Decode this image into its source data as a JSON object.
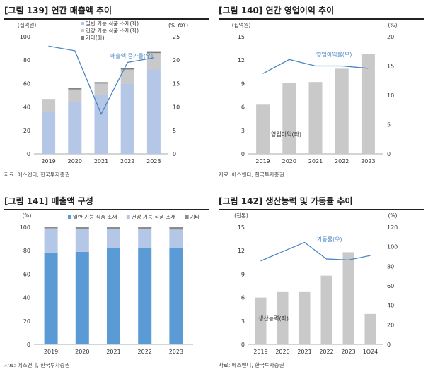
{
  "chart_data": [
    {
      "type": "bar",
      "stacked": true,
      "title": "[그림 139] 연간 매출액 추이",
      "source": "자료: 에스앤디, 한국투자증권",
      "left_unit": "(십억원)",
      "right_unit": "(% YoY)",
      "categories": [
        "2019",
        "2020",
        "2021",
        "2022",
        "2023"
      ],
      "ylim": [
        0,
        100
      ],
      "yticks": [
        "0",
        "20",
        "40",
        "60",
        "80",
        "100"
      ],
      "y2lim": [
        0,
        25
      ],
      "y2ticks": [
        "0",
        "5",
        "10",
        "15",
        "20",
        "25"
      ],
      "series": [
        {
          "name": "일반 기능 식품 소재(좌)",
          "color": "#b4c7e7",
          "values": [
            36,
            44,
            50,
            60,
            72
          ]
        },
        {
          "name": "건강 기능 식품 소재(좌)",
          "color": "#c9c9c9",
          "values": [
            10,
            11,
            10,
            12,
            14
          ]
        },
        {
          "name": "기타(좌)",
          "color": "#7f7f7f",
          "values": [
            0.6,
            1,
            1.2,
            1.4,
            1.6
          ]
        }
      ],
      "line": {
        "name": "매출액 증가률(우)",
        "color": "#4a86c5",
        "values": [
          23,
          22,
          8.5,
          19.5,
          20.5
        ]
      }
    },
    {
      "type": "bar",
      "title": "[그림 140] 연간 영업이익 추이",
      "source": "자료: 에스앤디, 한국투자증권",
      "left_unit": "(십억원)",
      "right_unit": "(%)",
      "categories": [
        "2019",
        "2020",
        "2021",
        "2022",
        "2023"
      ],
      "ylim": [
        0,
        15
      ],
      "yticks": [
        "0",
        "3",
        "6",
        "9",
        "12",
        "15"
      ],
      "y2lim": [
        0,
        20
      ],
      "y2ticks": [
        "0",
        "5",
        "10",
        "15",
        "20"
      ],
      "bar": {
        "name": "영업이익(좌)",
        "color": "#c9c9c9",
        "values": [
          6.3,
          9.1,
          9.2,
          10.9,
          12.8
        ]
      },
      "line": {
        "name": "영업이익률(우)",
        "color": "#4a86c5",
        "values": [
          13.7,
          16.1,
          15,
          15,
          14.6
        ]
      }
    },
    {
      "type": "bar",
      "stacked": true,
      "title": "[그림 141] 매출액 구성",
      "source": "자료: 에스앤디, 한국투자증권",
      "left_unit": "(%)",
      "categories": [
        "2019",
        "2020",
        "2021",
        "2022",
        "2023"
      ],
      "ylim": [
        0,
        100
      ],
      "yticks": [
        "0",
        "20",
        "40",
        "60",
        "80",
        "100"
      ],
      "series": [
        {
          "name": "일반 기능 식품 소재",
          "color": "#5b9bd5",
          "values": [
            78,
            79,
            82,
            82,
            82.5
          ]
        },
        {
          "name": "건강 기능 식품 소재",
          "color": "#b4c7e7",
          "values": [
            21,
            19.5,
            16.5,
            16.5,
            15.5
          ]
        },
        {
          "name": "기타",
          "color": "#8c8c8c",
          "values": [
            1,
            1.5,
            1.5,
            1.5,
            2
          ]
        }
      ]
    },
    {
      "type": "bar",
      "title": "[그림 142] 생산능력 및 가동률 추이",
      "source": "자료: 에스앤디, 한국투자증권",
      "left_unit": "(천톤)",
      "right_unit": "(%)",
      "categories": [
        "2019",
        "2020",
        "2021",
        "2022",
        "2023",
        "1Q24"
      ],
      "ylim": [
        0,
        15
      ],
      "yticks": [
        "0",
        "3",
        "6",
        "9",
        "12",
        "15"
      ],
      "y2lim": [
        0,
        120
      ],
      "y2ticks": [
        "0",
        "20",
        "40",
        "60",
        "80",
        "100",
        "120"
      ],
      "bar": {
        "name": "생산능력(좌)",
        "color": "#c9c9c9",
        "values": [
          6,
          6.7,
          6.7,
          8.8,
          11.8,
          3.9
        ]
      },
      "line": {
        "name": "가동률(우)",
        "color": "#4a86c5",
        "values": [
          85.5,
          95,
          104.5,
          87.5,
          86.5,
          91
        ]
      }
    }
  ]
}
